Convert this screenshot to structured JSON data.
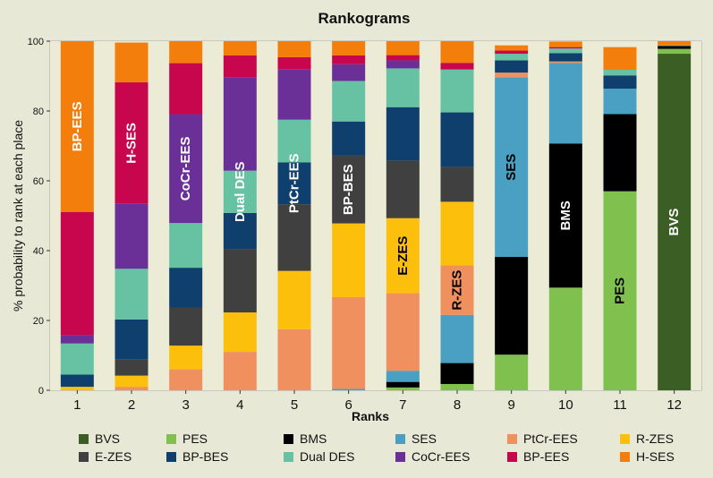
{
  "chart_data": {
    "type": "bar",
    "stacked": true,
    "title": "Rankograms",
    "xlabel": "Ranks",
    "ylabel": "% probability to rank at each place",
    "ylim": [
      0,
      100
    ],
    "yticks": [
      0,
      20,
      40,
      60,
      80,
      100
    ],
    "categories": [
      "1",
      "2",
      "3",
      "4",
      "5",
      "6",
      "7",
      "8",
      "9",
      "10",
      "11",
      "12"
    ],
    "grid": false,
    "legend_position": "bottom",
    "colors": {
      "BVS": "#3a5e23",
      "PES": "#7fc04f",
      "BMS": "#000000",
      "SES": "#4aa0c2",
      "PtCr-EES": "#f0905e",
      "R-ZES": "#fbbf0c",
      "E-ZES": "#404040",
      "BP-BES": "#0f3f6c",
      "Dual DES": "#66c2a3",
      "CoCr-EES": "#6b3098",
      "BP-EES": "#c8064e",
      "H-SES": "#f47e0c"
    },
    "series": [
      {
        "name": "BVS",
        "values": [
          0,
          0,
          0,
          0,
          0,
          0,
          0,
          0,
          0,
          0,
          0,
          96.4
        ]
      },
      {
        "name": "PES",
        "values": [
          0,
          0,
          0,
          0,
          0,
          0,
          0.8,
          1.8,
          10.2,
          29.4,
          57.0,
          1.4
        ]
      },
      {
        "name": "BMS",
        "values": [
          0,
          0,
          0,
          0,
          0,
          0,
          1.6,
          6.0,
          28.0,
          41.3,
          22.1,
          0.8
        ]
      },
      {
        "name": "SES",
        "values": [
          0,
          0,
          0,
          0,
          0,
          0.4,
          3.2,
          13.8,
          51.4,
          23.1,
          7.3,
          0.2
        ]
      },
      {
        "name": "PtCr-EES",
        "values": [
          0,
          1.0,
          6.0,
          11.0,
          17.5,
          26.3,
          22.2,
          14.2,
          1.4,
          0.4,
          0,
          0
        ]
      },
      {
        "name": "R-ZES",
        "values": [
          1.0,
          3.2,
          6.8,
          11.3,
          16.7,
          21.1,
          21.5,
          18.2,
          0,
          0,
          0,
          0
        ]
      },
      {
        "name": "E-ZES",
        "values": [
          0,
          4.6,
          10.8,
          18.2,
          19.1,
          19.4,
          16.5,
          10.0,
          0,
          0,
          0,
          0
        ]
      },
      {
        "name": "BP-BES",
        "values": [
          3.5,
          11.5,
          11.5,
          10.3,
          12.0,
          9.8,
          15.3,
          15.6,
          3.5,
          2.4,
          3.8,
          0
        ]
      },
      {
        "name": "Dual DES",
        "values": [
          8.9,
          14.5,
          12.8,
          12.1,
          12.2,
          11.6,
          11.1,
          12.3,
          1.9,
          1.3,
          1.6,
          0
        ]
      },
      {
        "name": "CoCr-EES",
        "values": [
          2.4,
          18.6,
          31.2,
          26.8,
          14.5,
          4.8,
          2.3,
          0,
          0,
          0,
          0,
          0
        ]
      },
      {
        "name": "BP-EES",
        "values": [
          35.3,
          34.8,
          14.6,
          6.2,
          3.4,
          2.5,
          1.5,
          1.9,
          0.9,
          0.4,
          0,
          0
        ]
      },
      {
        "name": "H-SES",
        "values": [
          48.9,
          11.4,
          6.3,
          4.1,
          4.6,
          4.1,
          4.0,
          6.2,
          1.5,
          1.6,
          6.5,
          1.2
        ]
      }
    ],
    "bar_labels": [
      {
        "rank": "1",
        "text": "BP-EES",
        "series": "H-SES",
        "color": "#ffffff"
      },
      {
        "rank": "2",
        "text": "H-SES",
        "series": "BP-EES",
        "color": "#ffffff"
      },
      {
        "rank": "3",
        "text": "CoCr-EES",
        "series": "CoCr-EES",
        "color": "#ffffff"
      },
      {
        "rank": "4",
        "text": "Dual DES",
        "series": "Dual DES",
        "color": "#ffffff"
      },
      {
        "rank": "5",
        "text": "PtCr-EES",
        "series": "BP-BES",
        "color": "#ffffff"
      },
      {
        "rank": "6",
        "text": "BP-BES",
        "series": "E-ZES",
        "color": "#ffffff"
      },
      {
        "rank": "7",
        "text": "E-ZES",
        "series": "R-ZES",
        "color": "#000000"
      },
      {
        "rank": "8",
        "text": "R-ZES",
        "series": "PtCr-EES",
        "color": "#000000"
      },
      {
        "rank": "9",
        "text": "SES",
        "series": "SES",
        "color": "#000000"
      },
      {
        "rank": "10",
        "text": "BMS",
        "series": "BMS",
        "color": "#ffffff"
      },
      {
        "rank": "11",
        "text": "PES",
        "series": "PES",
        "color": "#000000"
      },
      {
        "rank": "12",
        "text": "BVS",
        "series": "BVS",
        "color": "#ffffff"
      }
    ],
    "legend": [
      "BVS",
      "PES",
      "BMS",
      "SES",
      "PtCr-EES",
      "R-ZES",
      "E-ZES",
      "BP-BES",
      "Dual DES",
      "CoCr-EES",
      "BP-EES",
      "H-SES"
    ]
  }
}
